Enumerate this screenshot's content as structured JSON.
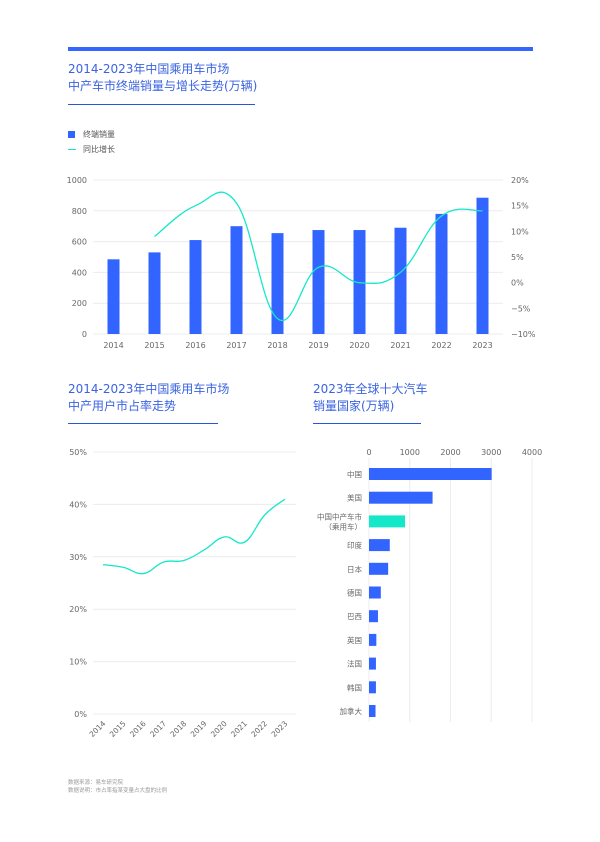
{
  "colors": {
    "accent": "#3366ff",
    "bar": "#3264ff",
    "line": "#14e8c8",
    "title": "#3a63e0"
  },
  "section1": {
    "title_line1": "2014-2023年中国乘用车市场",
    "title_line2": "中产车市终端销量与增长走势(万辆)"
  },
  "section2": {
    "title_line1": "2014-2023年中国乘用车市场",
    "title_line2": "中产用户市占率走势"
  },
  "section3": {
    "title_line1": "2023年全球十大汽车",
    "title_line2": "销量国家(万辆)"
  },
  "footer": {
    "source": "数据来源：易车研究院",
    "note": "数据说明：市占率指某变量占大盘的比例"
  },
  "chart_data": [
    {
      "type": "bar",
      "title": "2014-2023年中国乘用车市场中产车市终端销量与增长走势(万辆)",
      "categories": [
        "2014",
        "2015",
        "2016",
        "2017",
        "2018",
        "2019",
        "2020",
        "2021",
        "2022",
        "2023"
      ],
      "series": [
        {
          "name": "终端销量",
          "type": "bar",
          "axis": "left",
          "values": [
            485,
            530,
            610,
            700,
            655,
            675,
            675,
            690,
            780,
            885
          ]
        },
        {
          "name": "同比增长",
          "type": "line",
          "axis": "right",
          "values": [
            null,
            9,
            15,
            15.5,
            -7,
            3,
            0,
            2,
            13,
            14
          ]
        }
      ],
      "legend": [
        "终端销量",
        "同比增长"
      ],
      "legend_position": "top-left",
      "ylim": [
        0,
        1000
      ],
      "yticks": [
        "0",
        "200",
        "400",
        "600",
        "800",
        "1000"
      ],
      "y2lim": [
        -10,
        20
      ],
      "y2ticks": [
        "−10%",
        "−5%",
        "0%",
        "5%",
        "10%",
        "15%",
        "20%"
      ],
      "grid": true
    },
    {
      "type": "line",
      "title": "2014-2023年中国乘用车市场中产用户市占率走势",
      "categories": [
        "2014",
        "2015",
        "2016",
        "2017",
        "2018",
        "2019",
        "2020",
        "2021",
        "2022",
        "2023"
      ],
      "series": [
        {
          "name": "市占率",
          "values": [
            28.5,
            28.0,
            26.8,
            29.0,
            29.3,
            31.3,
            33.8,
            32.8,
            38.0,
            41.0
          ]
        }
      ],
      "ylim": [
        0,
        50
      ],
      "yticks": [
        "0%",
        "10%",
        "20%",
        "30%",
        "40%",
        "50%"
      ],
      "grid": true
    },
    {
      "type": "bar",
      "orientation": "horizontal",
      "title": "2023年全球十大汽车销量国家(万辆)",
      "categories": [
        "中国",
        "美国",
        "中国中产车市\n（乘用车）",
        "印度",
        "日本",
        "德国",
        "巴西",
        "英国",
        "法国",
        "韩国",
        "加拿大"
      ],
      "category_lines": [
        [
          "中国"
        ],
        [
          "美国"
        ],
        [
          "中国中产车市",
          "（乘用车）"
        ],
        [
          "印度"
        ],
        [
          "日本"
        ],
        [
          "德国"
        ],
        [
          "巴西"
        ],
        [
          "英国"
        ],
        [
          "法国"
        ],
        [
          "韩国"
        ],
        [
          "加拿大"
        ]
      ],
      "values": [
        3010,
        1560,
        885,
        510,
        470,
        290,
        220,
        180,
        170,
        170,
        160
      ],
      "highlight_index": 2,
      "xlim": [
        0,
        4000
      ],
      "xticks": [
        "0",
        "1000",
        "2000",
        "3000",
        "4000"
      ],
      "xaxis_position": "top",
      "grid": true
    }
  ]
}
